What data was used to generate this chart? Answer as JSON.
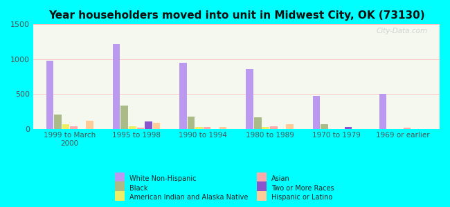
{
  "title": "Year householders moved into unit in Midwest City, OK (73130)",
  "background_color": "#00FFFF",
  "plot_bg_top": "#e8f0d8",
  "plot_bg_bottom": "#f5f8ee",
  "categories": [
    "1999 to March\n2000",
    "1995 to 1998",
    "1990 to 1994",
    "1980 to 1989",
    "1970 to 1979",
    "1969 or earlier"
  ],
  "series_order": [
    "White Non-Hispanic",
    "Black",
    "American Indian and Alaska Native",
    "Asian",
    "Two or More Races",
    "Hispanic or Latino"
  ],
  "series": {
    "White Non-Hispanic": [
      980,
      1220,
      950,
      860,
      470,
      500
    ],
    "Black": [
      200,
      330,
      170,
      160,
      60,
      0
    ],
    "American Indian and Alaska Native": [
      60,
      40,
      30,
      30,
      0,
      0
    ],
    "Asian": [
      40,
      20,
      30,
      40,
      0,
      20
    ],
    "Two or More Races": [
      0,
      100,
      0,
      0,
      30,
      0
    ],
    "Hispanic or Latino": [
      110,
      80,
      30,
      60,
      0,
      0
    ]
  },
  "colors": {
    "White Non-Hispanic": "#bb99ee",
    "Black": "#aabb88",
    "American Indian and Alaska Native": "#eeee66",
    "Asian": "#ffaaaa",
    "Two or More Races": "#8855cc",
    "Hispanic or Latino": "#ffcc99"
  },
  "ylim": [
    0,
    1500
  ],
  "yticks": [
    0,
    500,
    1000,
    1500
  ],
  "watermark": "City-Data.com",
  "legend_order_left": [
    "White Non-Hispanic",
    "American Indian and Alaska Native",
    "Two or More Races"
  ],
  "legend_order_right": [
    "Black",
    "Asian",
    "Hispanic or Latino"
  ]
}
